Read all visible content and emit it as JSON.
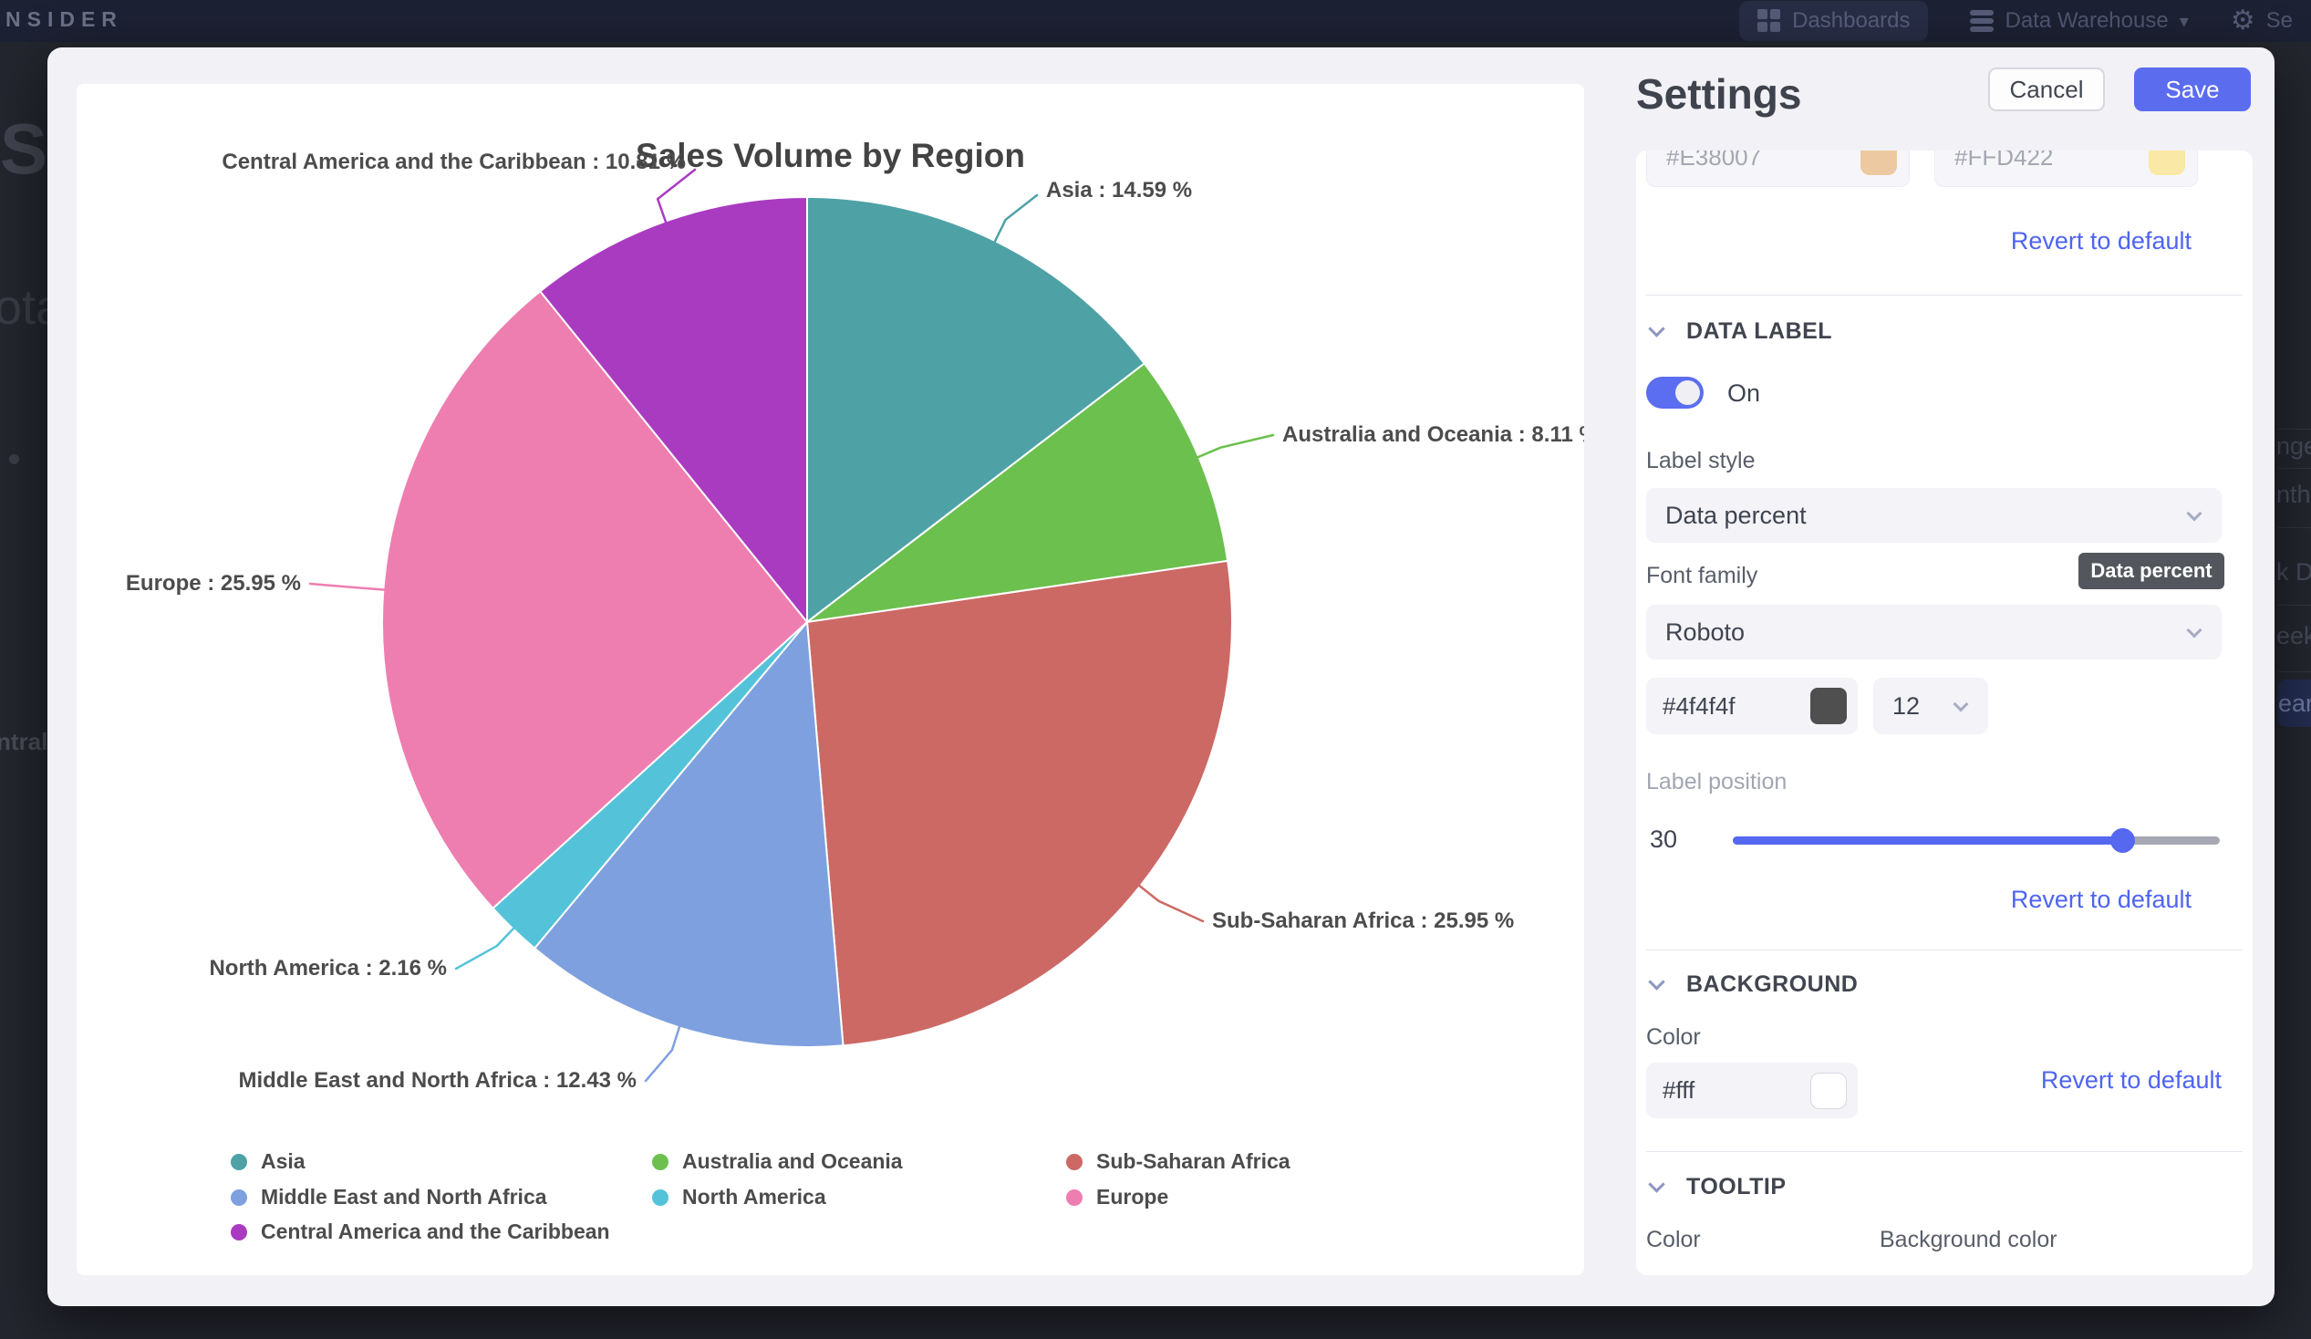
{
  "navbar": {
    "logo": "NSIDER",
    "dashboards_label": "Dashboards",
    "data_warehouse_label": "Data Warehouse",
    "settings_partial_label": "Se",
    "caret": "▾",
    "gear": "⚙"
  },
  "fragments": {
    "left": [
      "Sal",
      "ota",
      "ntral"
    ],
    "right": [
      "nge",
      "nth",
      "k D",
      "eek",
      "ear"
    ]
  },
  "chart_data": {
    "type": "pie",
    "title": "Sales Volume by Region",
    "label_format": "{name} : {value} %",
    "legend_position": "bottom",
    "series": [
      {
        "name": "Asia",
        "value": 14.59,
        "color": "#4EA2A6"
      },
      {
        "name": "Australia and Oceania",
        "value": 8.11,
        "color": "#6CC04E"
      },
      {
        "name": "Sub-Saharan Africa",
        "value": 25.95,
        "color": "#CC6965"
      },
      {
        "name": "Middle East and North Africa",
        "value": 12.43,
        "color": "#7EA0DF"
      },
      {
        "name": "North America",
        "value": 2.16,
        "color": "#54C3D9"
      },
      {
        "name": "Europe",
        "value": 25.95,
        "color": "#EE7EB0"
      },
      {
        "name": "Central America and the Caribbean",
        "value": 10.81,
        "color": "#A93BC1"
      }
    ]
  },
  "settings": {
    "title": "Settings",
    "cancel_label": "Cancel",
    "save_label": "Save",
    "accent_color": "#5B6CEF",
    "series_colors": {
      "color1": "#E38007",
      "color2": "#FFD422",
      "revert_label": "Revert to default"
    },
    "data_label": {
      "heading": "DATA LABEL",
      "state": "On",
      "label_style_label": "Label style",
      "label_style_value": "Data percent",
      "tooltip": "Data percent",
      "font_family_label": "Font family",
      "font_family_value": "Roboto",
      "font_color": "#4f4f4f",
      "font_size": "12",
      "label_position_label": "Label position",
      "label_position_value": "30",
      "revert_label": "Revert to default"
    },
    "background": {
      "heading": "BACKGROUND",
      "color_label": "Color",
      "color_value": "#fff",
      "revert_label": "Revert to default"
    },
    "tooltip_section": {
      "heading": "TOOLTIP",
      "color_label": "Color",
      "bg_color_label": "Background color"
    }
  }
}
